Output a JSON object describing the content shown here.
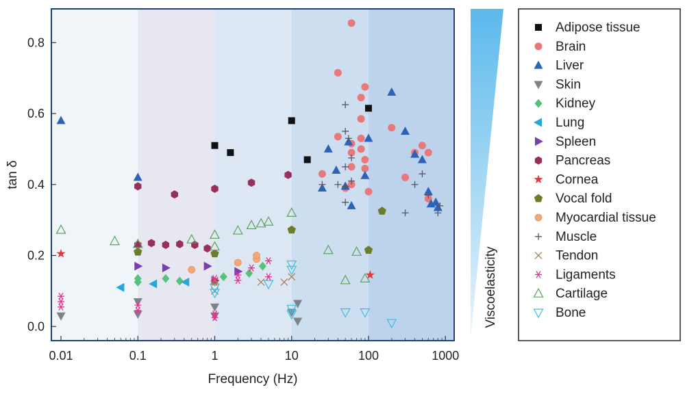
{
  "chart_data": {
    "type": "scatter",
    "xscale": "log",
    "xlim": [
      0.0075,
      1300
    ],
    "ylim": [
      -0.04,
      0.895
    ],
    "xlabel": "Frequency (Hz)",
    "ylabel": "tan δ",
    "xticks": [
      {
        "value": 0.01,
        "label": "0.01"
      },
      {
        "value": 0.1,
        "label": "0.1"
      },
      {
        "value": 1,
        "label": "1"
      },
      {
        "value": 10,
        "label": "10"
      },
      {
        "value": 100,
        "label": "100"
      },
      {
        "value": 1000,
        "label": "1000"
      }
    ],
    "yticks": [
      {
        "value": 0.0,
        "label": "0.0"
      },
      {
        "value": 0.2,
        "label": "0.2"
      },
      {
        "value": 0.4,
        "label": "0.4"
      },
      {
        "value": 0.6,
        "label": "0.6"
      },
      {
        "value": 0.8,
        "label": "0.8"
      }
    ],
    "background_bands": [
      {
        "from": 0.0075,
        "to": 0.1,
        "color": "#f0f5fa"
      },
      {
        "from": 0.1,
        "to": 1,
        "color": "#e7e7f2"
      },
      {
        "from": 1,
        "to": 10,
        "color": "#dce7f3"
      },
      {
        "from": 10,
        "to": 100,
        "color": "#cddef0"
      },
      {
        "from": 100,
        "to": 1300,
        "color": "#bdd3ec"
      }
    ],
    "gradient_label": "Viscoelasticity",
    "legend_position": "right, outside plot",
    "series": [
      {
        "name": "Adipose tissue",
        "marker": "square",
        "color": "#111111",
        "points": [
          [
            1,
            0.51
          ],
          [
            1.6,
            0.49
          ],
          [
            10,
            0.58
          ],
          [
            16,
            0.47
          ],
          [
            100,
            0.615
          ]
        ]
      },
      {
        "name": "Brain",
        "marker": "circle",
        "color": "#e8797a",
        "points": [
          [
            25,
            0.43
          ],
          [
            40,
            0.535
          ],
          [
            40,
            0.715
          ],
          [
            50,
            0.39
          ],
          [
            60,
            0.855
          ],
          [
            60,
            0.515
          ],
          [
            60,
            0.49
          ],
          [
            60,
            0.45
          ],
          [
            60,
            0.4
          ],
          [
            80,
            0.645
          ],
          [
            80,
            0.585
          ],
          [
            80,
            0.53
          ],
          [
            80,
            0.5
          ],
          [
            90,
            0.675
          ],
          [
            90,
            0.47
          ],
          [
            90,
            0.445
          ],
          [
            100,
            0.38
          ],
          [
            200,
            0.56
          ],
          [
            300,
            0.42
          ],
          [
            400,
            0.49
          ],
          [
            500,
            0.51
          ],
          [
            600,
            0.49
          ],
          [
            600,
            0.36
          ]
        ]
      },
      {
        "name": "Liver",
        "marker": "triangle-up",
        "color": "#2c63b8",
        "points": [
          [
            0.01,
            0.58
          ],
          [
            0.1,
            0.42
          ],
          [
            25,
            0.39
          ],
          [
            30,
            0.5
          ],
          [
            38,
            0.44
          ],
          [
            50,
            0.395
          ],
          [
            55,
            0.52
          ],
          [
            60,
            0.34
          ],
          [
            90,
            0.425
          ],
          [
            100,
            0.53
          ],
          [
            200,
            0.66
          ],
          [
            300,
            0.55
          ],
          [
            400,
            0.485
          ],
          [
            500,
            0.47
          ],
          [
            600,
            0.38
          ],
          [
            650,
            0.345
          ],
          [
            750,
            0.35
          ],
          [
            800,
            0.335
          ]
        ]
      },
      {
        "name": "Skin",
        "marker": "triangle-down",
        "color": "#7e8289",
        "points": [
          [
            0.01,
            0.03
          ],
          [
            0.1,
            0.07
          ],
          [
            0.1,
            0.035
          ],
          [
            1,
            0.055
          ],
          [
            1,
            0.03
          ],
          [
            10,
            0.04
          ],
          [
            12,
            0.065
          ],
          [
            12,
            0.015
          ]
        ]
      },
      {
        "name": "Kidney",
        "marker": "diamond",
        "color": "#55c27a",
        "points": [
          [
            0.1,
            0.135
          ],
          [
            0.1,
            0.125
          ],
          [
            0.23,
            0.135
          ],
          [
            0.35,
            0.128
          ],
          [
            1,
            0.125
          ],
          [
            1.3,
            0.14
          ],
          [
            2.8,
            0.15
          ],
          [
            4.2,
            0.17
          ]
        ]
      },
      {
        "name": "Lung",
        "marker": "triangle-left",
        "color": "#26a6da",
        "points": [
          [
            0.06,
            0.11
          ],
          [
            0.16,
            0.12
          ],
          [
            0.42,
            0.125
          ]
        ]
      },
      {
        "name": "Spleen",
        "marker": "triangle-right",
        "color": "#7a3fae",
        "points": [
          [
            0.1,
            0.17
          ],
          [
            0.23,
            0.165
          ],
          [
            0.8,
            0.17
          ],
          [
            1,
            0.13
          ],
          [
            2,
            0.155
          ]
        ]
      },
      {
        "name": "Pancreas",
        "marker": "hexagon",
        "color": "#98305c",
        "points": [
          [
            0.1,
            0.395
          ],
          [
            0.1,
            0.23
          ],
          [
            0.15,
            0.235
          ],
          [
            0.23,
            0.23
          ],
          [
            0.3,
            0.372
          ],
          [
            0.35,
            0.232
          ],
          [
            0.55,
            0.23
          ],
          [
            0.8,
            0.22
          ],
          [
            1,
            0.388
          ],
          [
            3,
            0.405
          ],
          [
            9,
            0.427
          ]
        ]
      },
      {
        "name": "Cornea",
        "marker": "star",
        "color": "#e23a3a",
        "points": [
          [
            0.01,
            0.205
          ],
          [
            0.1,
            0.21
          ],
          [
            1,
            0.125
          ],
          [
            105,
            0.145
          ]
        ]
      },
      {
        "name": "Vocal fold",
        "marker": "pentagon",
        "color": "#6e7d2c",
        "points": [
          [
            0.1,
            0.21
          ],
          [
            1,
            0.205
          ],
          [
            10,
            0.272
          ],
          [
            100,
            0.215
          ],
          [
            150,
            0.325
          ]
        ]
      },
      {
        "name": "Myocardial tissue",
        "marker": "circle-small",
        "color": "#f3a877",
        "points": [
          [
            0.5,
            0.16
          ],
          [
            2,
            0.18
          ],
          [
            3.5,
            0.19
          ],
          [
            3.5,
            0.2
          ]
        ]
      },
      {
        "name": "Muscle",
        "marker": "plus",
        "color": "#555566",
        "points": [
          [
            25,
            0.4
          ],
          [
            40,
            0.4
          ],
          [
            50,
            0.625
          ],
          [
            50,
            0.55
          ],
          [
            50,
            0.45
          ],
          [
            50,
            0.395
          ],
          [
            50,
            0.35
          ],
          [
            55,
            0.53
          ],
          [
            60,
            0.475
          ],
          [
            60,
            0.41
          ],
          [
            300,
            0.32
          ],
          [
            400,
            0.4
          ],
          [
            500,
            0.43
          ],
          [
            600,
            0.37
          ],
          [
            800,
            0.32
          ],
          [
            850,
            0.34
          ]
        ]
      },
      {
        "name": "Tendon",
        "marker": "x",
        "color": "#a78456",
        "points": [
          [
            1,
            0.13
          ],
          [
            1,
            0.1
          ],
          [
            4,
            0.125
          ],
          [
            8,
            0.125
          ],
          [
            10,
            0.14
          ]
        ]
      },
      {
        "name": "Ligaments",
        "marker": "asterisk",
        "color": "#e2338f",
        "points": [
          [
            0.01,
            0.085
          ],
          [
            0.01,
            0.07
          ],
          [
            0.01,
            0.055
          ],
          [
            0.1,
            0.06
          ],
          [
            0.1,
            0.045
          ],
          [
            1,
            0.035
          ],
          [
            1,
            0.025
          ],
          [
            1,
            0.135
          ],
          [
            2,
            0.13
          ],
          [
            2,
            0.145
          ],
          [
            3,
            0.165
          ],
          [
            5,
            0.185
          ],
          [
            5,
            0.14
          ]
        ]
      },
      {
        "name": "Cartilage",
        "marker": "triangle-up-open",
        "color": "#5aa35e",
        "points": [
          [
            0.01,
            0.272
          ],
          [
            0.05,
            0.24
          ],
          [
            0.1,
            0.232
          ],
          [
            0.5,
            0.245
          ],
          [
            1,
            0.258
          ],
          [
            1,
            0.225
          ],
          [
            2,
            0.27
          ],
          [
            3,
            0.285
          ],
          [
            4,
            0.29
          ],
          [
            5,
            0.295
          ],
          [
            10,
            0.32
          ],
          [
            30,
            0.215
          ],
          [
            50,
            0.13
          ],
          [
            70,
            0.21
          ],
          [
            90,
            0.135
          ]
        ]
      },
      {
        "name": "Bone",
        "marker": "triangle-down-open",
        "color": "#3cbde0",
        "points": [
          [
            1,
            0.11
          ],
          [
            1,
            0.095
          ],
          [
            5,
            0.12
          ],
          [
            10,
            0.175
          ],
          [
            10,
            0.16
          ],
          [
            10,
            0.05
          ],
          [
            10,
            0.035
          ],
          [
            50,
            0.04
          ],
          [
            90,
            0.04
          ],
          [
            200,
            0.01
          ]
        ]
      }
    ]
  }
}
